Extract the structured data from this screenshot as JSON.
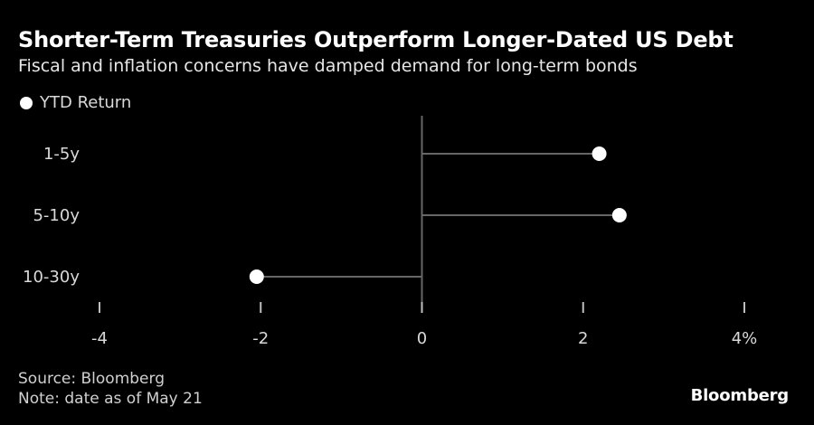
{
  "title": "Shorter-Term Treasuries Outperform Longer-Dated US Debt",
  "subtitle": "Fiscal and inflation concerns have damped demand for long-term bonds",
  "legend_label": "YTD Return",
  "source": "Source: Bloomberg",
  "note": "Note: date as of May 21",
  "brand": "Bloomberg",
  "colors": {
    "background": "#000000",
    "marker": "#ffffff",
    "stem": "#666666",
    "text": "#d9d9d9"
  },
  "chart_data": {
    "type": "lollipop",
    "orientation": "horizontal",
    "categories": [
      "1-5y",
      "5-10y",
      "10-30y"
    ],
    "series": [
      {
        "name": "YTD Return",
        "values": [
          2.2,
          2.45,
          -2.05
        ]
      }
    ],
    "xlim": [
      -4,
      4
    ],
    "xticks": [
      -4,
      -2,
      0,
      2,
      4
    ],
    "xtick_labels": [
      "-4",
      "-2",
      "0",
      "2",
      "4%"
    ],
    "grid": false,
    "legend_position": "top-left"
  }
}
